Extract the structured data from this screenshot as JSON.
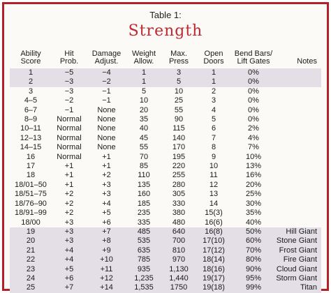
{
  "caption": "Table 1:",
  "title": "Strength",
  "headers": [
    "Ability\nScore",
    "Hit\nProb.",
    "Damage\nAdjust.",
    "Weight\nAllow.",
    "Max.\nPress",
    "Open\nDoors",
    "Bend Bars/\nLift Gates",
    "Notes"
  ],
  "rows": [
    [
      "1",
      "−5",
      "−4",
      "1",
      "3",
      "1",
      "0%",
      ""
    ],
    [
      "2",
      "−3",
      "−2",
      "1",
      "5",
      "1",
      "0%",
      ""
    ],
    [
      "3",
      "−3",
      "−1",
      "5",
      "10",
      "2",
      "0%",
      ""
    ],
    [
      "4–5",
      "−2",
      "−1",
      "10",
      "25",
      "3",
      "0%",
      ""
    ],
    [
      "6–7",
      "−1",
      "None",
      "20",
      "55",
      "4",
      "0%",
      ""
    ],
    [
      "8–9",
      "Normal",
      "None",
      "35",
      "90",
      "5",
      "0%",
      ""
    ],
    [
      "10–11",
      "Normal",
      "None",
      "40",
      "115",
      "6",
      "2%",
      ""
    ],
    [
      "12–13",
      "Normal",
      "None",
      "45",
      "140",
      "7",
      "4%",
      ""
    ],
    [
      "14–15",
      "Normal",
      "None",
      "55",
      "170",
      "8",
      "7%",
      ""
    ],
    [
      "16",
      "Normal",
      "+1",
      "70",
      "195",
      "9",
      "10%",
      ""
    ],
    [
      "17",
      "+1",
      "+1",
      "85",
      "220",
      "10",
      "13%",
      ""
    ],
    [
      "18",
      "+1",
      "+2",
      "110",
      "255",
      "11",
      "16%",
      ""
    ],
    [
      "18/01–50",
      "+1",
      "+3",
      "135",
      "280",
      "12",
      "20%",
      ""
    ],
    [
      "18/51–75",
      "+2",
      "+3",
      "160",
      "305",
      "13",
      "25%",
      ""
    ],
    [
      "18/76–90",
      "+2",
      "+4",
      "185",
      "330",
      "14",
      "30%",
      ""
    ],
    [
      "18/91–99",
      "+2",
      "+5",
      "235",
      "380",
      "15(3)",
      "35%",
      ""
    ],
    [
      "18/00",
      "+3",
      "+6",
      "335",
      "480",
      "16(6)",
      "40%",
      ""
    ],
    [
      "19",
      "+3",
      "+7",
      "485",
      "640",
      "16(8)",
      "50%",
      "Hill Giant"
    ],
    [
      "20",
      "+3",
      "+8",
      "535",
      "700",
      "17(10)",
      "60%",
      "Stone Giant"
    ],
    [
      "21",
      "+4",
      "+9",
      "635",
      "810",
      "17(12)",
      "70%",
      "Frost Giant"
    ],
    [
      "22",
      "+4",
      "+10",
      "785",
      "970",
      "18(14)",
      "80%",
      "Fire Giant"
    ],
    [
      "23",
      "+5",
      "+11",
      "935",
      "1,130",
      "18(16)",
      "90%",
      "Cloud Giant"
    ],
    [
      "24",
      "+6",
      "+12",
      "1,235",
      "1,440",
      "19(17)",
      "95%",
      "Storm Giant"
    ],
    [
      "25",
      "+7",
      "+14",
      "1,535",
      "1750",
      "19(18)",
      "99%",
      "Titan"
    ]
  ],
  "shaded_rows": [
    0,
    1,
    17,
    18,
    19,
    20,
    21,
    22,
    23
  ],
  "colors": {
    "border": "#b3202a",
    "title": "#c0282f",
    "shade": "#e4dfe6"
  }
}
